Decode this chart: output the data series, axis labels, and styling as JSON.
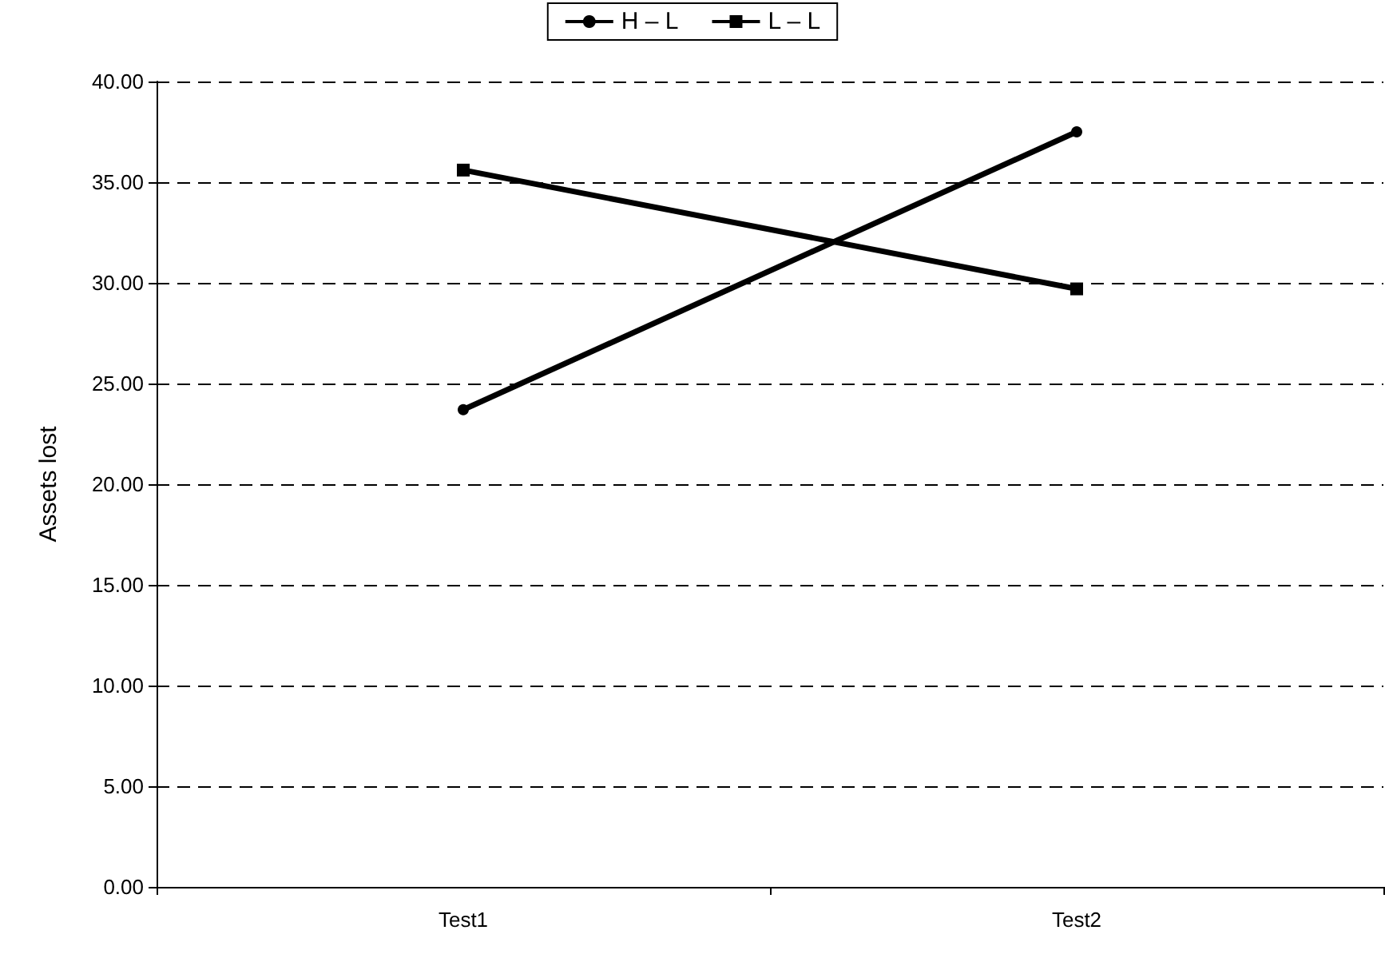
{
  "chart_data": {
    "type": "line",
    "ylabel": "Assets lost",
    "categories": [
      "Test1",
      "Test2"
    ],
    "series": [
      {
        "name": "H – L",
        "color": "#000000",
        "marker": "circle",
        "values": [
          23.7,
          37.5
        ]
      },
      {
        "name": "L – L",
        "color": "#000000",
        "marker": "square",
        "values": [
          35.6,
          29.7
        ]
      }
    ],
    "ylim": [
      0,
      40
    ],
    "yticks": [
      {
        "value": 0,
        "label": "0.00"
      },
      {
        "value": 5,
        "label": "5.00"
      },
      {
        "value": 10,
        "label": "10.00"
      },
      {
        "value": 15,
        "label": "15.00"
      },
      {
        "value": 20,
        "label": "20.00"
      },
      {
        "value": 25,
        "label": "25.00"
      },
      {
        "value": 30,
        "label": "30.00"
      },
      {
        "value": 35,
        "label": "35.00"
      },
      {
        "value": 40,
        "label": "40.00"
      }
    ],
    "grid": "y",
    "legend": "top",
    "line_style": "solid"
  }
}
